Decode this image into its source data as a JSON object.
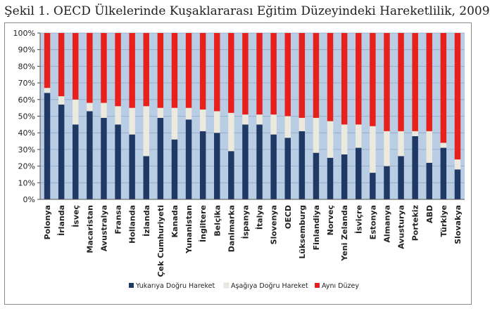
{
  "chart_data": {
    "type": "bar",
    "stacked": true,
    "title": "Şekil 1. OECD Ülkelerinde Kuşaklararası Eğitim Düzeyindeki Hareketlilik, 2009",
    "xlabel": "",
    "ylabel": "",
    "ylim": [
      0,
      100
    ],
    "yticks": [
      "0%",
      "10%",
      "20%",
      "30%",
      "40%",
      "50%",
      "60%",
      "70%",
      "80%",
      "90%",
      "100%"
    ],
    "categories": [
      "Polonya",
      "İrlanda",
      "İsveç",
      "Macaristan",
      "Avustralya",
      "Fransa",
      "Hollanda",
      "İzlanda",
      "Çek Cumhuriyeti",
      "Kanada",
      "Yunanistan",
      "İngiltere",
      "Belçika",
      "Danimarka",
      "İspanya",
      "İtalya",
      "Slovenya",
      "OECD",
      "Lüksemburg",
      "Finlandiya",
      "Norveç",
      "Yeni Zelanda",
      "İsviçre",
      "Estonya",
      "Almanya",
      "Avusturya",
      "Portekiz",
      "ABD",
      "Türkiye",
      "Slovakya"
    ],
    "series": [
      {
        "name": "Yukarıya Doğru Hareket",
        "color": "#1f3864",
        "values": [
          64,
          57,
          45,
          53,
          49,
          45,
          39,
          26,
          49,
          36,
          48,
          41,
          40,
          29,
          45,
          45,
          39,
          37,
          41,
          28,
          25,
          27,
          31,
          16,
          20,
          26,
          38,
          22,
          31,
          18
        ]
      },
      {
        "name": "Aşağıya Doğru Hareket",
        "color": "#ece9df",
        "values": [
          3,
          5,
          15,
          5,
          9,
          11,
          16,
          30,
          6,
          19,
          7,
          13,
          13,
          23,
          6,
          6,
          12,
          13,
          8,
          21,
          22,
          18,
          14,
          28,
          21,
          15,
          3,
          19,
          3,
          6
        ]
      },
      {
        "name": "Aynı Düzey",
        "color": "#e8201b",
        "values": [
          33,
          38,
          40,
          42,
          42,
          44,
          45,
          44,
          45,
          45,
          45,
          46,
          47,
          48,
          49,
          49,
          49,
          50,
          51,
          51,
          53,
          55,
          55,
          56,
          59,
          59,
          59,
          59,
          66,
          76
        ]
      }
    ],
    "legend": "bottom",
    "grid": true
  }
}
